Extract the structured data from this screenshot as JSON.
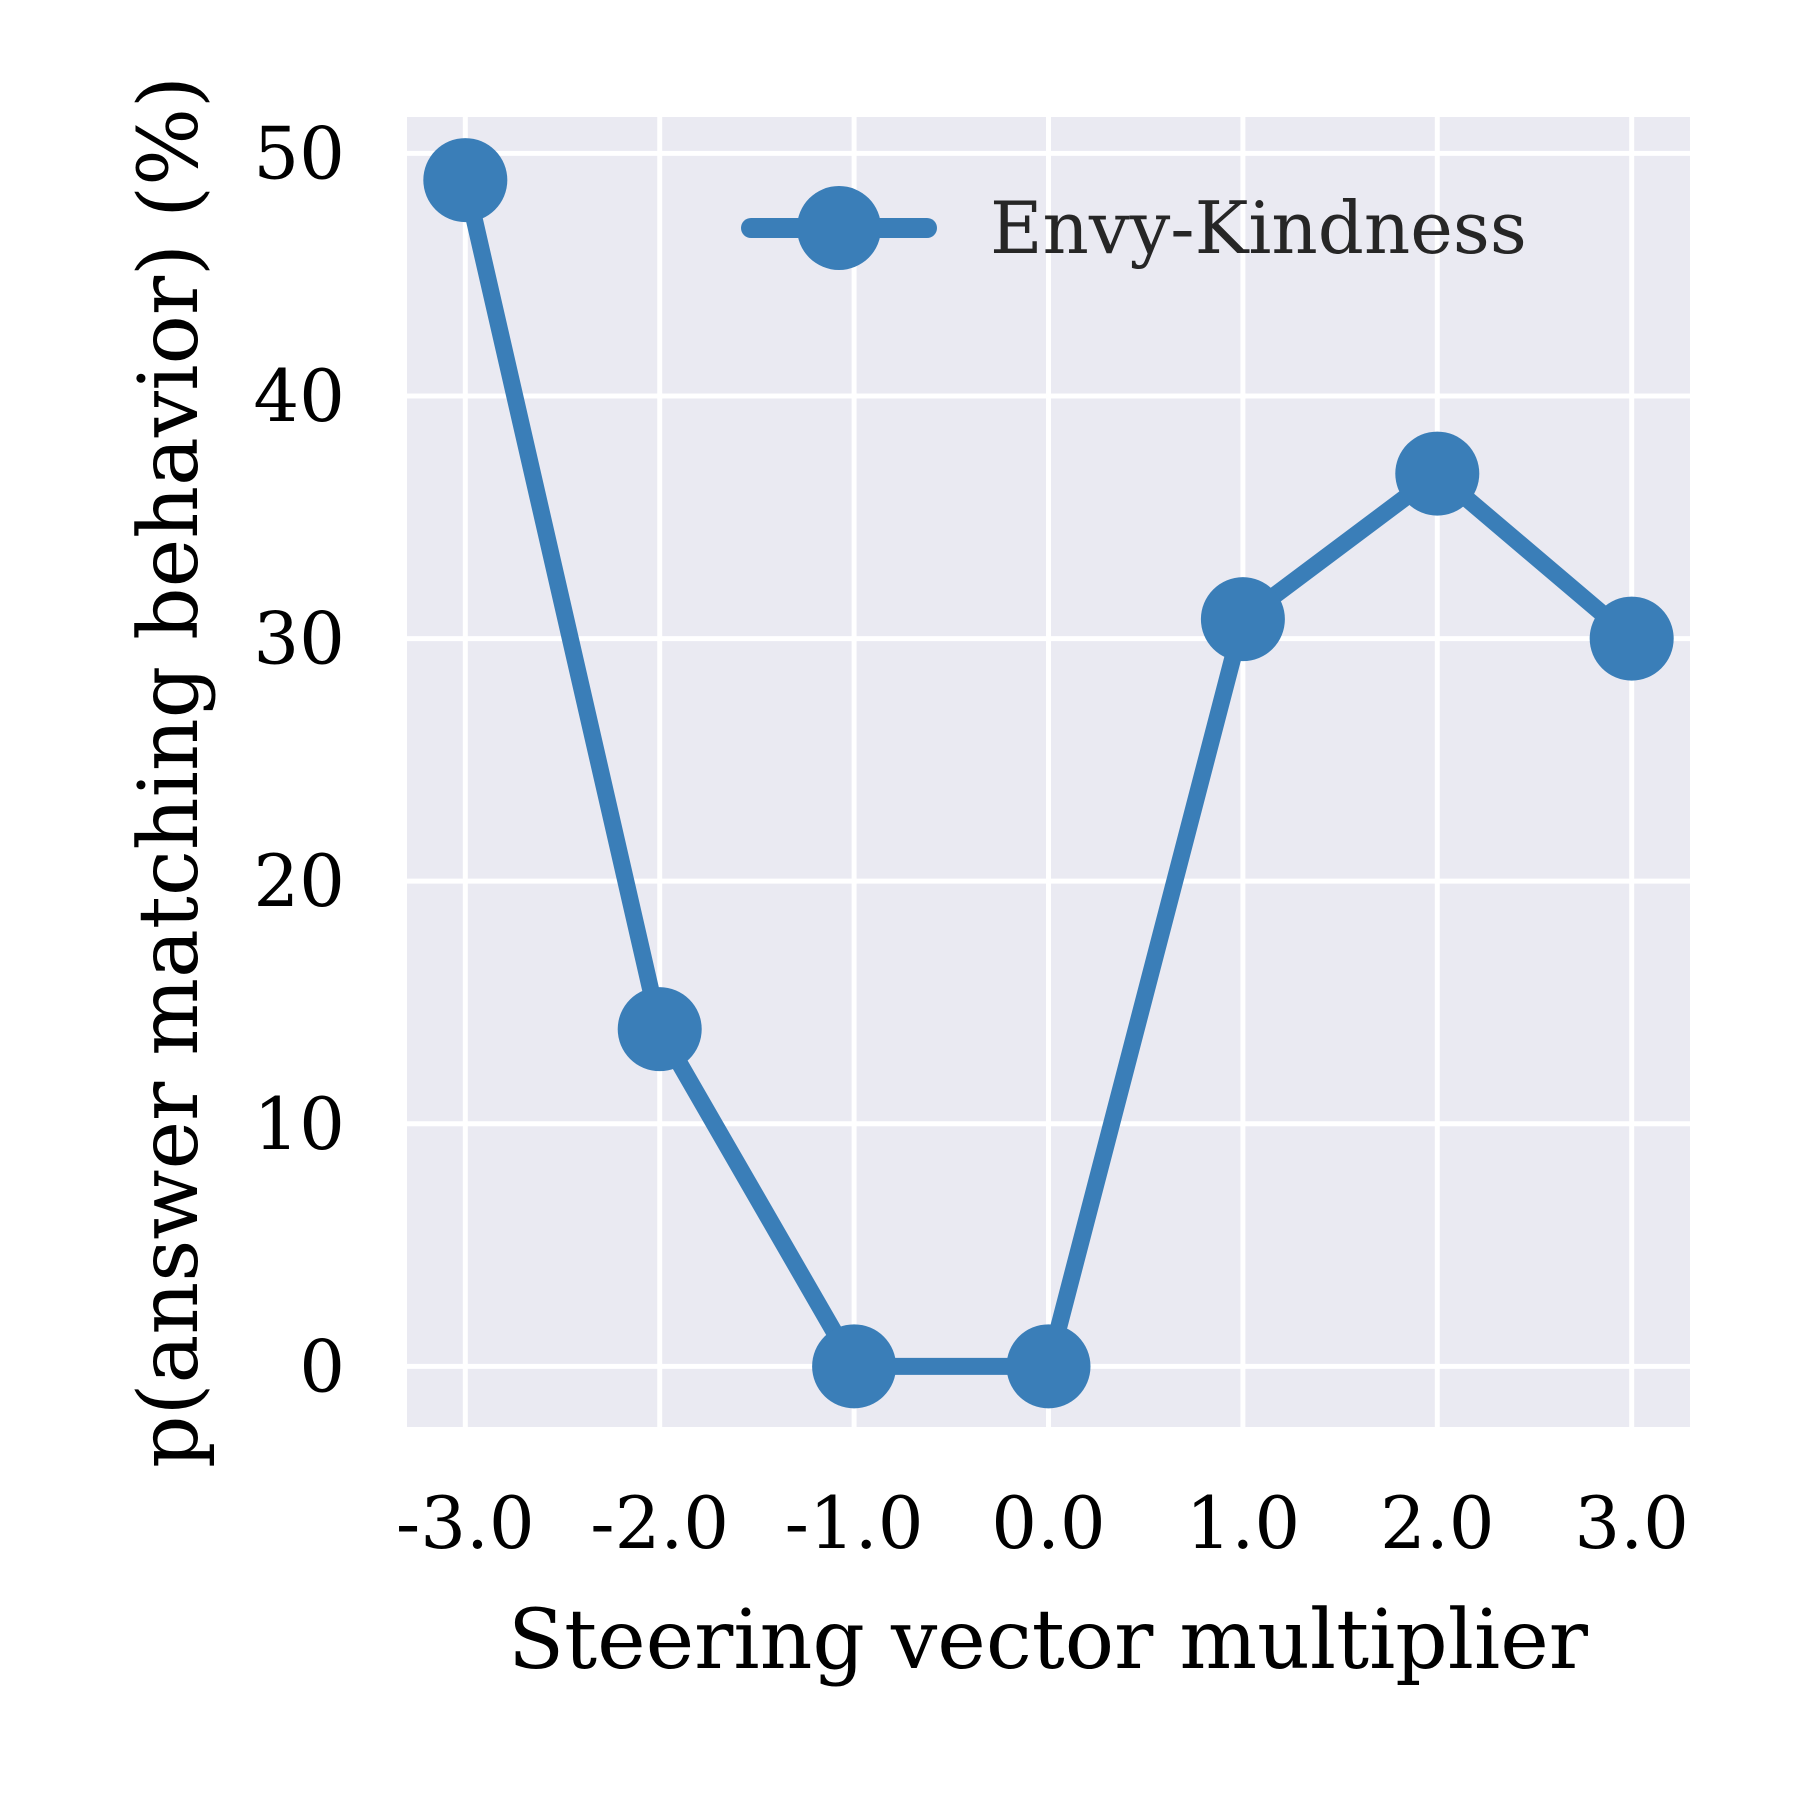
{
  "chart_data": {
    "type": "line",
    "title": "",
    "xlabel": "Steering vector multiplier",
    "ylabel": "p(answer matching behavior) (%)",
    "x": [
      -3.0,
      -2.0,
      -1.0,
      0.0,
      1.0,
      2.0,
      3.0
    ],
    "x_tick_labels": [
      "-3.0",
      "-2.0",
      "-1.0",
      "0.0",
      "1.0",
      "2.0",
      "3.0"
    ],
    "y_ticks": [
      0,
      10,
      20,
      30,
      40,
      50
    ],
    "y_tick_labels": [
      "0",
      "10",
      "20",
      "30",
      "40",
      "50"
    ],
    "xlim": [
      -3.3,
      3.3
    ],
    "ylim": [
      -2.5,
      51.5
    ],
    "grid": true,
    "background_color": "#eaeaf2",
    "legend_position": "top-right",
    "series": [
      {
        "name": "Envy-Kindness",
        "color": "#3a7eb8",
        "values": [
          48.9,
          13.9,
          0.0,
          0.0,
          30.8,
          36.8,
          30.0
        ]
      }
    ]
  }
}
